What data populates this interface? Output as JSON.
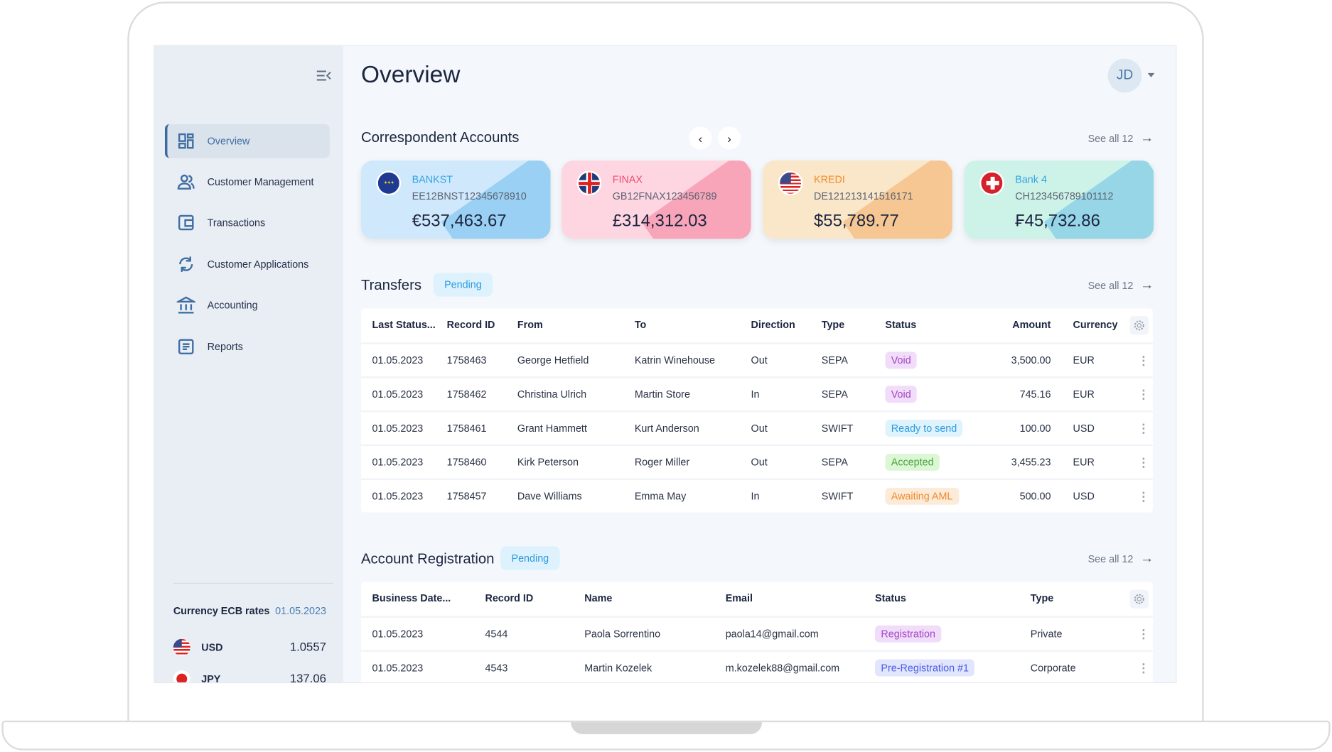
{
  "header": {
    "title": "Overview",
    "avatar_initials": "JD"
  },
  "sidebar": {
    "items": [
      {
        "label": "Overview",
        "icon": "dashboard-icon",
        "active": true
      },
      {
        "label": "Customer Management",
        "icon": "users-icon"
      },
      {
        "label": "Transactions",
        "icon": "wallet-icon"
      },
      {
        "label": "Customer Applications",
        "icon": "refresh-icon"
      },
      {
        "label": "Accounting",
        "icon": "bank-icon"
      },
      {
        "label": "Reports",
        "icon": "document-icon"
      }
    ],
    "rates": {
      "title": "Currency ECB rates",
      "date": "01.05.2023",
      "items": [
        {
          "code": "USD",
          "value": "1.0557"
        },
        {
          "code": "JPY",
          "value": "137.06"
        }
      ]
    }
  },
  "accounts": {
    "title": "Correspondent Accounts",
    "see_all": "See all 12",
    "cards": [
      {
        "name": "BANKST",
        "iban": "EE12BNST12345678910",
        "balance": "€537,463.67",
        "flag": "eu",
        "bg": "#cfe8fb",
        "accent": "#35a3e6"
      },
      {
        "name": "FINAX",
        "iban": "GB12FNAX123456789",
        "balance": "£314,312.03",
        "flag": "uk",
        "bg": "#fed6e2",
        "accent": "#ef4b6e"
      },
      {
        "name": "KREDI",
        "iban": "DE121213141516171",
        "balance": "$55,789.77",
        "flag": "us",
        "bg": "#fae7c9",
        "accent": "#ef8b2c"
      },
      {
        "name": "Bank 4",
        "iban": "CH123456789101112",
        "balance": "₣45,732.86",
        "flag": "ch",
        "bg": "#cdf2e8",
        "accent": "#35a3e6"
      }
    ]
  },
  "transfers": {
    "title": "Transfers",
    "badge": "Pending",
    "see_all": "See all 12",
    "columns": [
      "Last Status...",
      "Record ID",
      "From",
      "To",
      "Direction",
      "Type",
      "Status",
      "Amount",
      "Currency"
    ],
    "rows": [
      [
        "01.05.2023",
        "1758463",
        "George Hetfield",
        "Katrin Winehouse",
        "Out",
        "SEPA",
        "Void",
        "3,500.00",
        "EUR"
      ],
      [
        "01.05.2023",
        "1758462",
        "Christina Ulrich",
        "Martin Store",
        "In",
        "SEPA",
        "Void",
        "745.16",
        "EUR"
      ],
      [
        "01.05.2023",
        "1758461",
        "Grant Hammett",
        "Kurt Anderson",
        "Out",
        "SWIFT",
        "Ready to send",
        "100.00",
        "USD"
      ],
      [
        "01.05.2023",
        "1758460",
        "Kirk Peterson",
        "Roger Miller",
        "Out",
        "SEPA",
        "Accepted",
        "3,455.23",
        "EUR"
      ],
      [
        "01.05.2023",
        "1758457",
        "Dave Williams",
        "Emma  May",
        "In",
        "SWIFT",
        "Awaiting AML",
        "500.00",
        "USD"
      ]
    ]
  },
  "registration": {
    "title": "Account Registration",
    "badge": "Pending",
    "see_all": "See all 12",
    "columns": [
      "Business Date...",
      "Record ID",
      "Name",
      "Email",
      "Status",
      "Type"
    ],
    "rows": [
      [
        "01.05.2023",
        "4544",
        "Paola Sorrentino",
        "paola14@gmail.com",
        "Registration",
        "Private"
      ],
      [
        "01.05.2023",
        "4543",
        "Martin Kozelek",
        "m.kozelek88@gmail.com",
        "Pre-Registration #1",
        "Corporate"
      ]
    ]
  },
  "status_colors": {
    "Void": [
      "#f1dcfa",
      "#a447c4"
    ],
    "Ready to send": [
      "#dff3fd",
      "#2b9be0"
    ],
    "Accepted": [
      "#dcf6d6",
      "#47a63a"
    ],
    "Awaiting AML": [
      "#fdebd9",
      "#ef8b2c"
    ],
    "Registration": [
      "#f1dcfa",
      "#a447c4"
    ],
    "Pre-Registration #1": [
      "#e1e6fd",
      "#4b5ee0"
    ]
  }
}
